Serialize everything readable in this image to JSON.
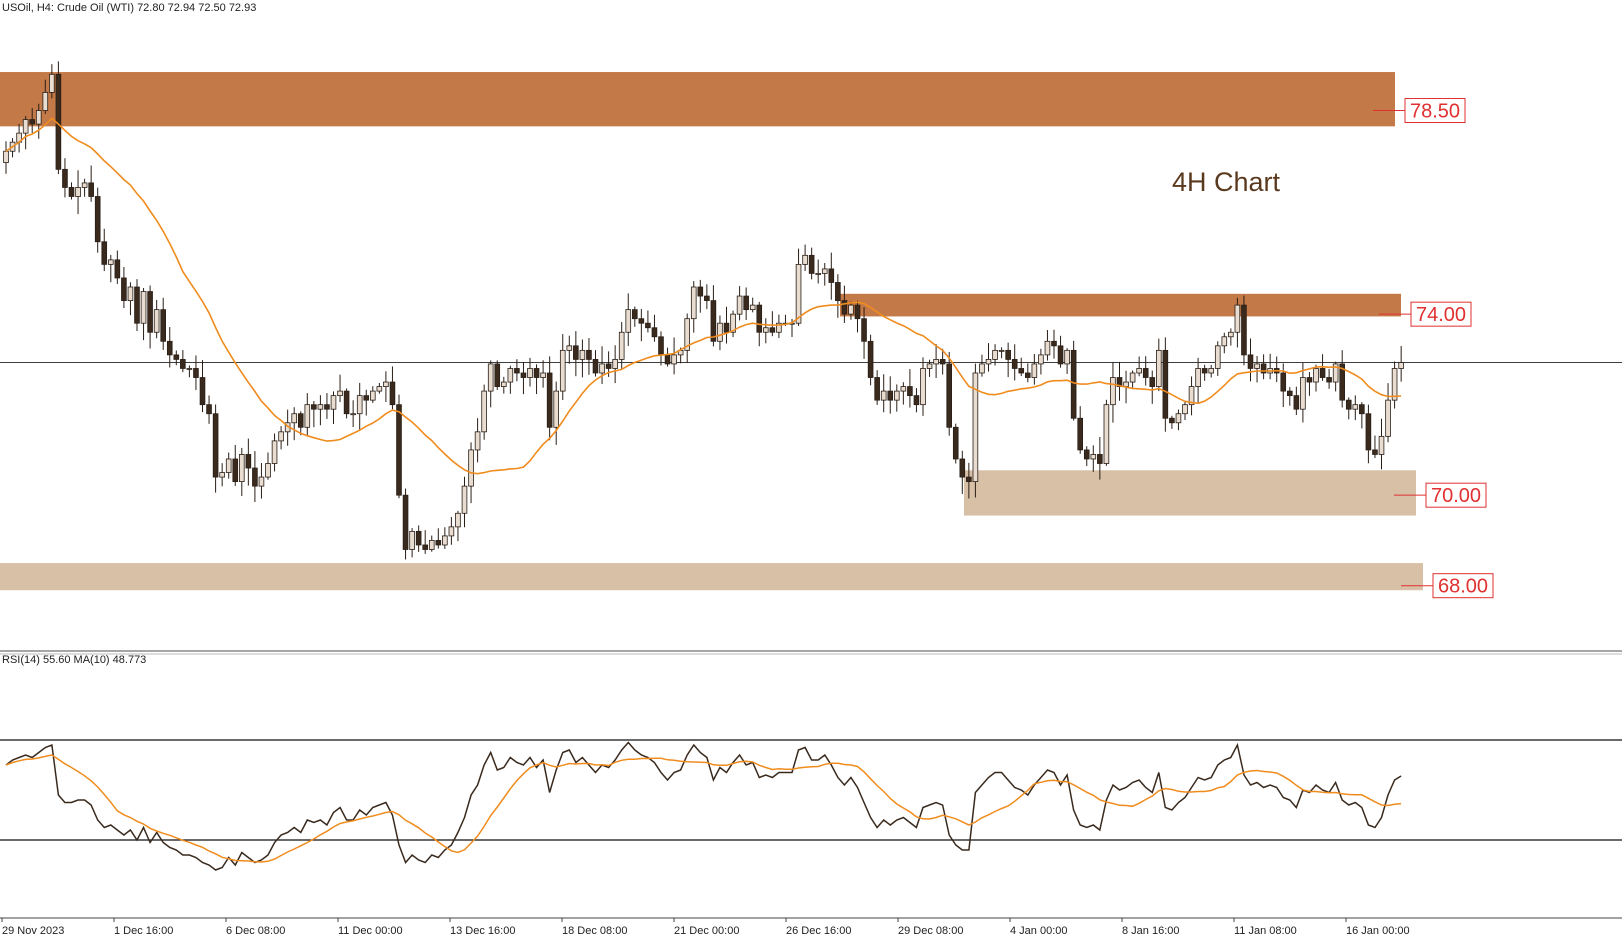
{
  "header": {
    "symbol_line": "USOil, H4:  Crude Oil (WTI)  72.80 72.94 72.50 72.93"
  },
  "annotation": {
    "title": "4H Chart",
    "title_color": "#5a3a1e"
  },
  "levels": [
    {
      "label": "78.50",
      "zone": [
        78.15,
        79.35
      ],
      "color": "#c47a48",
      "line_color": "#e03030"
    },
    {
      "label": "74.00",
      "zone": [
        73.95,
        74.45
      ],
      "color": "#c47a48",
      "line_color": "#e03030"
    },
    {
      "label": "70.00",
      "zone": [
        69.55,
        70.55
      ],
      "color": "#d7c0a6",
      "line_color": "#e03030"
    },
    {
      "label": "68.00",
      "zone": [
        67.9,
        68.5
      ],
      "color": "#d7c0a6",
      "line_color": "#e03030"
    }
  ],
  "current_price": 72.93,
  "x_ticks": [
    "29 Nov 2023",
    "1 Dec 16:00",
    "6 Dec 08:00",
    "11 Dec 00:00",
    "13 Dec 16:00",
    "18 Dec 08:00",
    "21 Dec 00:00",
    "26 Dec 16:00",
    "29 Dec 08:00",
    "4 Jan 00:00",
    "8 Jan 16:00",
    "11 Jan 08:00",
    "16 Jan 00:00"
  ],
  "rsi_panel": {
    "label": "RSI(14) 55.60 MA(10) 48.773",
    "levels": [
      70,
      30
    ],
    "rsi_color": "#3a2a1e",
    "ma_color": "#f08c1e"
  },
  "chart_data": {
    "type": "candlestick",
    "symbol": "USOil",
    "timeframe": "H4",
    "ylim": [
      66.8,
      80.5
    ],
    "close": [
      77.6,
      77.8,
      78.0,
      78.3,
      78.2,
      78.5,
      78.9,
      79.3,
      77.2,
      76.8,
      76.6,
      76.8,
      76.9,
      76.6,
      75.6,
      75.1,
      75.2,
      74.8,
      74.3,
      74.6,
      73.8,
      74.5,
      73.6,
      74.1,
      73.4,
      73.1,
      73.0,
      72.8,
      72.8,
      72.6,
      72.0,
      71.8,
      70.4,
      70.5,
      70.8,
      70.3,
      70.9,
      70.6,
      70.2,
      70.4,
      70.7,
      71.2,
      71.4,
      71.6,
      71.8,
      71.5,
      72.0,
      71.9,
      72.0,
      71.9,
      72.2,
      72.3,
      71.8,
      71.8,
      72.2,
      72.1,
      72.3,
      72.4,
      72.5,
      72.0,
      70.0,
      68.8,
      69.2,
      68.9,
      68.8,
      69.0,
      68.9,
      69.1,
      69.3,
      69.6,
      70.2,
      71.0,
      71.4,
      72.3,
      72.9,
      72.4,
      72.5,
      72.8,
      72.7,
      72.6,
      72.8,
      72.6,
      72.7,
      71.5,
      72.3,
      73.2,
      73.3,
      73.0,
      73.2,
      73.0,
      72.7,
      72.9,
      72.8,
      73.0,
      73.6,
      74.1,
      73.9,
      73.8,
      73.7,
      73.5,
      73.1,
      72.9,
      73.1,
      73.2,
      73.9,
      74.6,
      74.4,
      74.3,
      73.4,
      73.8,
      73.6,
      74.0,
      74.4,
      74.1,
      74.2,
      73.6,
      73.7,
      73.6,
      73.8,
      73.8,
      73.8,
      75.1,
      75.3,
      74.9,
      74.9,
      75.0,
      74.7,
      74.3,
      74.0,
      74.2,
      73.9,
      73.4,
      72.6,
      72.1,
      72.3,
      72.1,
      72.3,
      72.4,
      72.2,
      72.0,
      72.8,
      72.9,
      73.0,
      72.9,
      71.5,
      70.8,
      70.4,
      70.3,
      72.7,
      72.9,
      73.0,
      73.2,
      73.2,
      73.0,
      72.8,
      72.7,
      72.6,
      72.9,
      73.1,
      73.4,
      73.3,
      72.9,
      73.2,
      71.7,
      71.0,
      70.8,
      70.9,
      70.7,
      72.0,
      72.6,
      72.4,
      72.5,
      72.7,
      72.8,
      72.6,
      72.4,
      73.2,
      71.7,
      71.6,
      71.8,
      72.0,
      72.4,
      72.8,
      72.7,
      72.8,
      73.3,
      73.5,
      73.6,
      74.2,
      73.1,
      72.8,
      72.9,
      72.7,
      72.8,
      72.7,
      72.3,
      72.2,
      71.9,
      72.6,
      72.5,
      72.8,
      72.6,
      72.5,
      72.9,
      72.1,
      71.9,
      72.0,
      71.8,
      71.0,
      70.9,
      71.3,
      72.1,
      72.8,
      72.93
    ],
    "ma": {
      "label": "MA",
      "color": "#f08c1e"
    },
    "rsi": [
      60,
      62,
      63,
      64,
      63,
      65,
      67,
      68,
      48,
      45,
      45,
      46,
      46,
      44,
      38,
      35,
      36,
      34,
      32,
      34,
      30,
      35,
      29,
      33,
      29,
      27,
      26,
      24,
      24,
      23,
      21,
      20,
      18,
      19,
      23,
      20,
      25,
      23,
      21,
      22,
      24,
      29,
      32,
      33,
      35,
      33,
      38,
      37,
      38,
      36,
      41,
      43,
      38,
      38,
      42,
      40,
      43,
      44,
      45,
      40,
      28,
      21,
      24,
      22,
      21,
      24,
      23,
      26,
      28,
      33,
      39,
      48,
      52,
      60,
      65,
      58,
      59,
      63,
      61,
      60,
      63,
      59,
      62,
      49,
      58,
      65,
      66,
      61,
      63,
      60,
      57,
      60,
      59,
      62,
      66,
      69,
      66,
      64,
      63,
      61,
      57,
      54,
      57,
      58,
      64,
      68,
      65,
      63,
      54,
      59,
      57,
      61,
      64,
      60,
      61,
      55,
      56,
      55,
      57,
      57,
      57,
      66,
      67,
      62,
      62,
      64,
      60,
      55,
      52,
      55,
      51,
      45,
      39,
      35,
      38,
      36,
      38,
      39,
      37,
      35,
      43,
      44,
      45,
      44,
      32,
      28,
      26,
      26,
      49,
      52,
      55,
      57,
      57,
      54,
      51,
      50,
      48,
      52,
      55,
      58,
      57,
      52,
      56,
      42,
      36,
      35,
      36,
      34,
      46,
      52,
      50,
      51,
      53,
      54,
      51,
      49,
      57,
      43,
      42,
      45,
      47,
      51,
      55,
      54,
      55,
      60,
      62,
      63,
      68,
      56,
      52,
      53,
      51,
      52,
      51,
      47,
      46,
      43,
      50,
      49,
      52,
      50,
      49,
      53,
      46,
      44,
      45,
      43,
      36,
      35,
      39,
      48,
      54,
      55.6
    ]
  }
}
